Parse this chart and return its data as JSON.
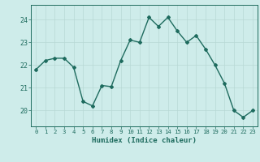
{
  "x": [
    0,
    1,
    2,
    3,
    4,
    5,
    6,
    7,
    8,
    9,
    10,
    11,
    12,
    13,
    14,
    15,
    16,
    17,
    18,
    19,
    20,
    21,
    22,
    23
  ],
  "y": [
    21.8,
    22.2,
    22.3,
    22.3,
    21.9,
    20.4,
    20.2,
    21.1,
    21.05,
    22.2,
    23.1,
    23.0,
    24.1,
    23.7,
    24.1,
    23.5,
    23.0,
    23.3,
    22.7,
    22.0,
    21.2,
    20.0,
    19.7,
    20.0
  ],
  "xlabel": "Humidex (Indice chaleur)",
  "yticks": [
    20,
    21,
    22,
    23,
    24
  ],
  "ylim": [
    19.3,
    24.65
  ],
  "xlim": [
    -0.5,
    23.5
  ],
  "line_color": "#1e6b5e",
  "bg_color": "#ceecea",
  "grid_color": "#b8d8d5",
  "tick_color": "#1e6b5e",
  "label_color": "#1e6b5e",
  "marker": "D",
  "markersize": 2.0,
  "linewidth": 1.0,
  "xtick_fontsize": 5.2,
  "ytick_fontsize": 6.0,
  "xlabel_fontsize": 6.5
}
